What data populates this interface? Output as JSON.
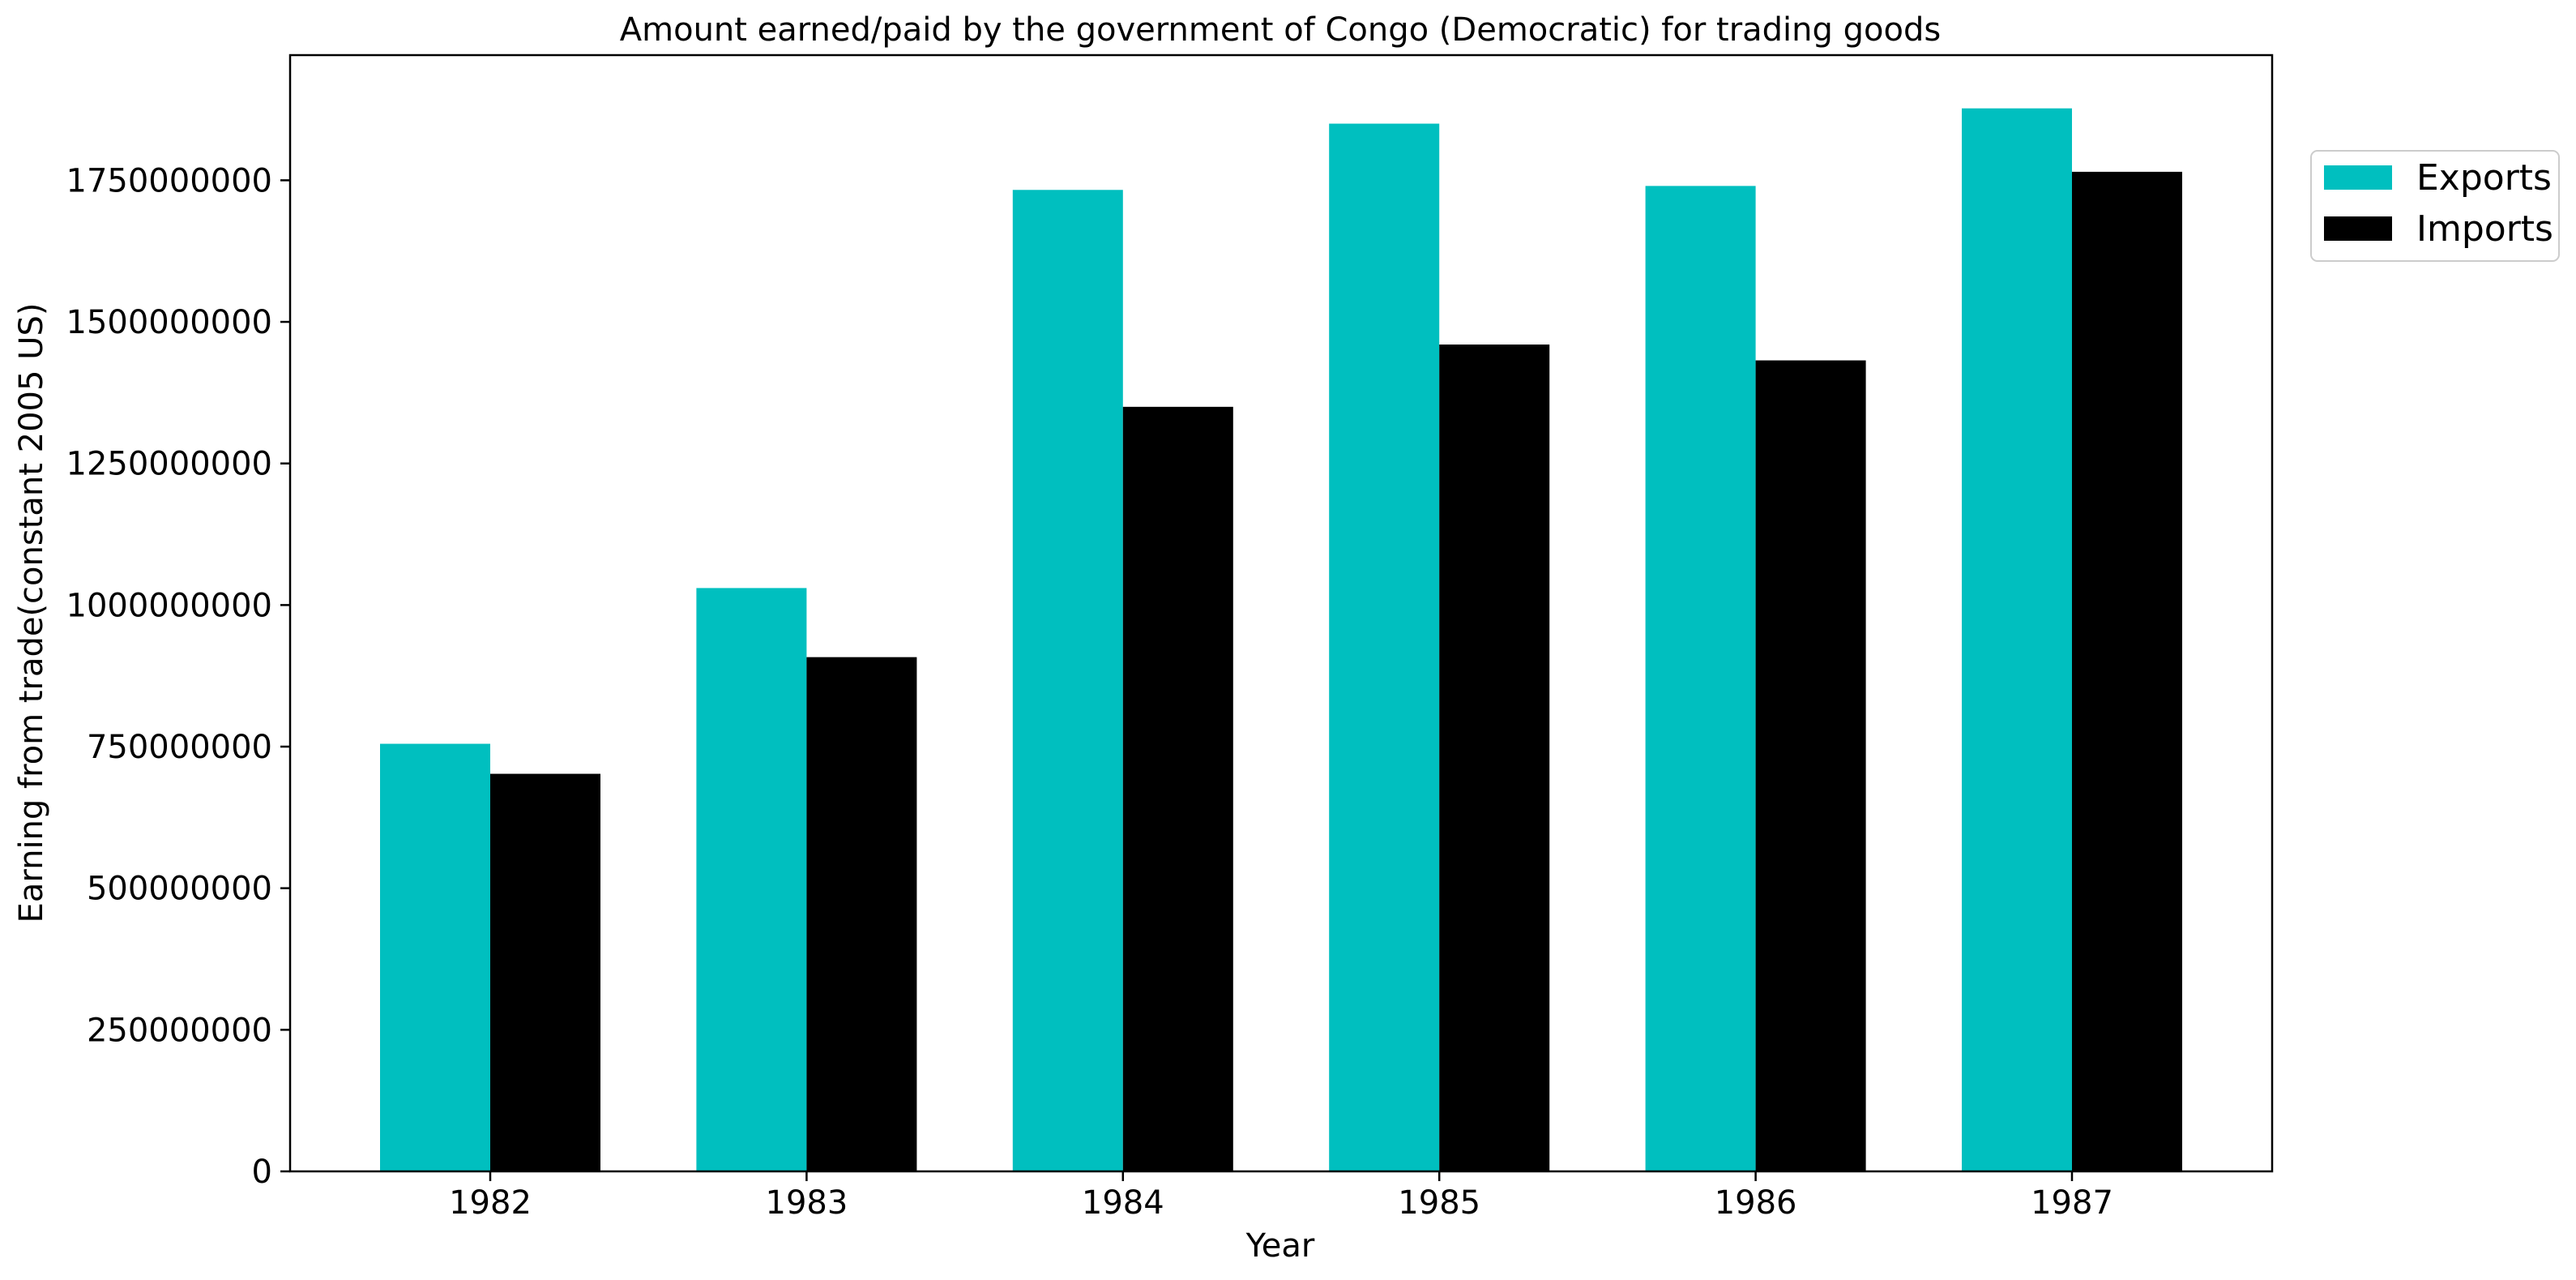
{
  "chart_data": {
    "type": "bar",
    "title": "Amount earned/paid by the government of Congo (Democratic) for trading goods",
    "xlabel": "Year",
    "ylabel": "Earning from trade(constant 2005 US)",
    "categories": [
      "1982",
      "1983",
      "1984",
      "1985",
      "1986",
      "1987"
    ],
    "series": [
      {
        "name": "Exports",
        "color": "#00bfbf",
        "values": [
          755000000,
          1030000000,
          1733000000,
          1850000000,
          1740000000,
          1877000000
        ]
      },
      {
        "name": "Imports",
        "color": "#000000",
        "values": [
          702000000,
          908000000,
          1350000000,
          1460000000,
          1432000000,
          1765000000
        ]
      }
    ],
    "yticks": [
      "0",
      "250000000",
      "500000000",
      "750000000",
      "1000000000",
      "1250000000",
      "1500000000",
      "1750000000"
    ],
    "ylim": [
      0,
      1971000000
    ],
    "grid": false,
    "legend_position": "upper-right-outside"
  }
}
